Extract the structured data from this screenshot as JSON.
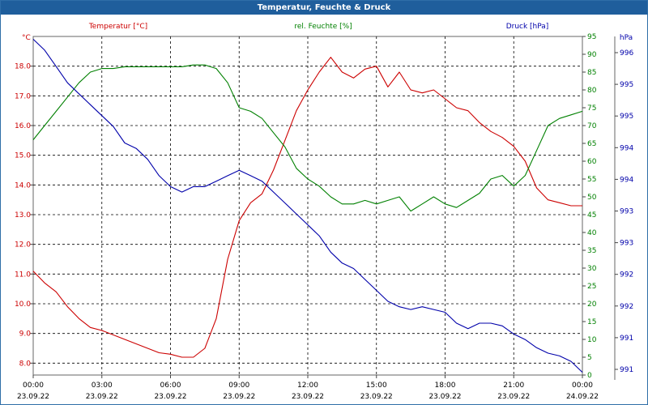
{
  "window": {
    "title": "Temperatur, Feuchte & Druck"
  },
  "colors": {
    "temperature": "#cc0000",
    "humidity": "#008000",
    "pressure": "#0000aa",
    "grid": "#000000",
    "axis": "#444444",
    "titlebar": "#1f5e9c"
  },
  "chart_data": {
    "type": "line",
    "title": "Temperatur, Feuchte & Druck",
    "x": {
      "range": [
        "2022-09-23 00:00",
        "2022-09-24 00:00"
      ],
      "ticks": [
        {
          "time": "00:00",
          "date": "23.09.22"
        },
        {
          "time": "03:00",
          "date": "23.09.22"
        },
        {
          "time": "06:00",
          "date": "23.09.22"
        },
        {
          "time": "09:00",
          "date": "23.09.22"
        },
        {
          "time": "12:00",
          "date": "23.09.22"
        },
        {
          "time": "15:00",
          "date": "23.09.22"
        },
        {
          "time": "18:00",
          "date": "23.09.22"
        },
        {
          "time": "21:00",
          "date": "23.09.22"
        },
        {
          "time": "00:00",
          "date": "24.09.22"
        }
      ]
    },
    "axes": {
      "temperature": {
        "label": "Temperatur [°C]",
        "unit": "°C",
        "ylim": [
          7.6,
          19.0
        ],
        "ticks": [
          "8.0",
          "9.0",
          "10.0",
          "11.0",
          "12.0",
          "13.0",
          "14.0",
          "15.0",
          "16.0",
          "17.0",
          "18.0"
        ]
      },
      "humidity": {
        "label": "rel. Feuchte [%]",
        "unit": "%",
        "ylim": [
          0,
          95
        ],
        "ticks": [
          "0",
          "5",
          "10",
          "15",
          "20",
          "25",
          "30",
          "35",
          "40",
          "45",
          "50",
          "55",
          "60",
          "65",
          "70",
          "75",
          "80",
          "85",
          "90",
          "95"
        ]
      },
      "pressure": {
        "label": "Druck [hPa]",
        "unit": "hPa",
        "ticks": [
          "991",
          "991",
          "992",
          "992",
          "993",
          "993",
          "994",
          "994",
          "995",
          "995",
          "996"
        ]
      }
    },
    "grid": true,
    "series": [
      {
        "name": "Temperatur [°C]",
        "axis": "temperature",
        "x": [
          0,
          0.5,
          1,
          1.5,
          2,
          2.5,
          3,
          4,
          5,
          5.5,
          6,
          6.5,
          7,
          7.5,
          8,
          8.5,
          9,
          9.5,
          10,
          10.5,
          11,
          11.5,
          12,
          12.5,
          13,
          13.5,
          14,
          14.5,
          15,
          15.5,
          16,
          16.5,
          17,
          17.5,
          18,
          18.5,
          19,
          19.5,
          20,
          20.5,
          21,
          21.5,
          22,
          22.5,
          23,
          23.5,
          24
        ],
        "y": [
          11.1,
          10.7,
          10.4,
          9.9,
          9.5,
          9.2,
          9.1,
          8.8,
          8.5,
          8.35,
          8.3,
          8.2,
          8.2,
          8.5,
          9.5,
          11.5,
          12.8,
          13.4,
          13.7,
          14.5,
          15.5,
          16.5,
          17.2,
          17.8,
          18.3,
          17.8,
          17.6,
          17.9,
          18.0,
          17.3,
          17.8,
          17.2,
          17.1,
          17.2,
          16.9,
          16.6,
          16.5,
          16.1,
          15.8,
          15.6,
          15.3,
          14.8,
          13.9,
          13.5,
          13.4,
          13.3,
          13.3
        ]
      },
      {
        "name": "rel. Feuchte [%]",
        "axis": "humidity",
        "x": [
          0,
          0.5,
          1,
          1.5,
          2,
          2.5,
          3,
          3.5,
          4,
          4.5,
          5,
          5.5,
          6,
          6.5,
          7,
          7.5,
          8,
          8.5,
          9,
          9.5,
          10,
          10.5,
          11,
          11.5,
          12,
          12.5,
          13,
          13.5,
          14,
          14.5,
          15,
          15.5,
          16,
          16.5,
          17,
          17.5,
          18,
          18.5,
          19,
          19.5,
          20,
          20.5,
          21,
          21.5,
          22,
          22.5,
          23,
          23.5,
          24
        ],
        "y": [
          66,
          70,
          74,
          78,
          82,
          85,
          86,
          86,
          86.5,
          86.5,
          86.5,
          86.5,
          86.5,
          86.5,
          87,
          87,
          86,
          82,
          75,
          74,
          72,
          68,
          64,
          58,
          55,
          53,
          50,
          48,
          48,
          49,
          48,
          49,
          50,
          46,
          48,
          50,
          48,
          47,
          49,
          51,
          55,
          56,
          53,
          56,
          63,
          70,
          72,
          73,
          74
        ]
      },
      {
        "name": "Druck [hPa]",
        "axis": "pressure",
        "x": [
          0,
          0.5,
          1,
          1.5,
          2,
          2.5,
          3,
          3.5,
          4,
          4.5,
          5,
          5.5,
          6,
          6.5,
          7,
          7.5,
          8,
          8.5,
          9,
          9.5,
          10,
          10.5,
          11,
          11.5,
          12,
          12.5,
          13,
          13.5,
          14,
          14.5,
          15,
          15.5,
          16,
          16.5,
          17,
          17.5,
          18,
          18.5,
          19,
          19.5,
          20,
          20.5,
          21,
          21.5,
          22,
          22.5,
          23,
          23.5,
          24
        ],
        "y": [
          996.2,
          996.0,
          995.7,
          995.4,
          995.2,
          995.0,
          994.8,
          994.6,
          994.3,
          994.2,
          994.0,
          993.7,
          993.5,
          993.4,
          993.5,
          993.5,
          993.6,
          993.7,
          993.8,
          993.7,
          993.6,
          993.4,
          993.2,
          993.0,
          992.8,
          992.6,
          992.3,
          992.1,
          992.0,
          991.8,
          991.6,
          991.4,
          991.3,
          991.25,
          991.3,
          991.25,
          991.2,
          991.0,
          990.9,
          991.0,
          991.0,
          990.95,
          990.8,
          990.7,
          990.55,
          990.45,
          990.4,
          990.3,
          990.1
        ]
      }
    ]
  }
}
